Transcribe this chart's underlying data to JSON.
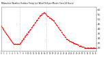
{
  "title": "Milwaukee Weather Outdoor Temp (vs) Wind Chill per Minute (Last 24 Hours)",
  "bg_color": "#ffffff",
  "plot_color": "#ffffff",
  "line_color": "#ff0000",
  "grid_color": "#dddddd",
  "vline_color": "#999999",
  "ytick_labels": [
    "20",
    "25",
    "30",
    "35",
    "40",
    "45",
    "50",
    "55",
    "60"
  ],
  "yticks": [
    20,
    25,
    30,
    35,
    40,
    45,
    50,
    55,
    60
  ],
  "ylim": [
    17,
    63
  ],
  "xlim": [
    0,
    143
  ],
  "vlines": [
    28,
    68
  ],
  "num_xticks": 36,
  "x": [
    0,
    1,
    2,
    3,
    4,
    5,
    6,
    7,
    8,
    9,
    10,
    11,
    12,
    13,
    14,
    15,
    16,
    17,
    18,
    19,
    20,
    21,
    22,
    23,
    24,
    25,
    26,
    27,
    28,
    29,
    30,
    31,
    32,
    33,
    34,
    35,
    36,
    37,
    38,
    39,
    40,
    41,
    42,
    43,
    44,
    45,
    46,
    47,
    48,
    49,
    50,
    51,
    52,
    53,
    54,
    55,
    56,
    57,
    58,
    59,
    60,
    61,
    62,
    63,
    64,
    65,
    66,
    67,
    68,
    69,
    70,
    71,
    72,
    73,
    74,
    75,
    76,
    77,
    78,
    79,
    80,
    81,
    82,
    83,
    84,
    85,
    86,
    87,
    88,
    89,
    90,
    91,
    92,
    93,
    94,
    95,
    96,
    97,
    98,
    99,
    100,
    101,
    102,
    103,
    104,
    105,
    106,
    107,
    108,
    109,
    110,
    111,
    112,
    113,
    114,
    115,
    116,
    117,
    118,
    119,
    120,
    121,
    122,
    123,
    124,
    125,
    126,
    127,
    128,
    129,
    130,
    131,
    132,
    133,
    134,
    135,
    136,
    137,
    138,
    139,
    140,
    141,
    142,
    143
  ],
  "y": [
    43,
    42,
    41,
    40,
    39,
    38,
    37,
    36,
    35,
    34,
    33,
    32,
    31,
    30,
    29,
    28,
    27,
    26,
    25,
    24,
    24,
    24,
    24,
    24,
    24,
    24,
    24,
    24,
    24,
    25,
    26,
    27,
    28,
    29,
    30,
    31,
    32,
    33,
    34,
    35,
    36,
    37,
    37,
    38,
    39,
    40,
    41,
    42,
    43,
    44,
    45,
    46,
    47,
    48,
    49,
    50,
    51,
    52,
    53,
    54,
    55,
    55,
    56,
    56,
    57,
    57,
    57,
    56,
    55,
    54,
    53,
    53,
    52,
    52,
    51,
    51,
    50,
    50,
    49,
    49,
    48,
    47,
    46,
    45,
    44,
    43,
    42,
    41,
    40,
    39,
    38,
    37,
    36,
    35,
    34,
    33,
    32,
    31,
    30,
    29,
    29,
    28,
    28,
    27,
    27,
    27,
    26,
    26,
    26,
    25,
    25,
    25,
    24,
    24,
    24,
    23,
    23,
    23,
    22,
    22,
    22,
    22,
    21,
    21,
    21,
    21,
    20,
    20,
    20,
    20,
    20,
    20,
    20,
    20,
    20,
    20,
    20,
    20,
    20,
    20,
    20,
    20,
    20,
    20
  ]
}
